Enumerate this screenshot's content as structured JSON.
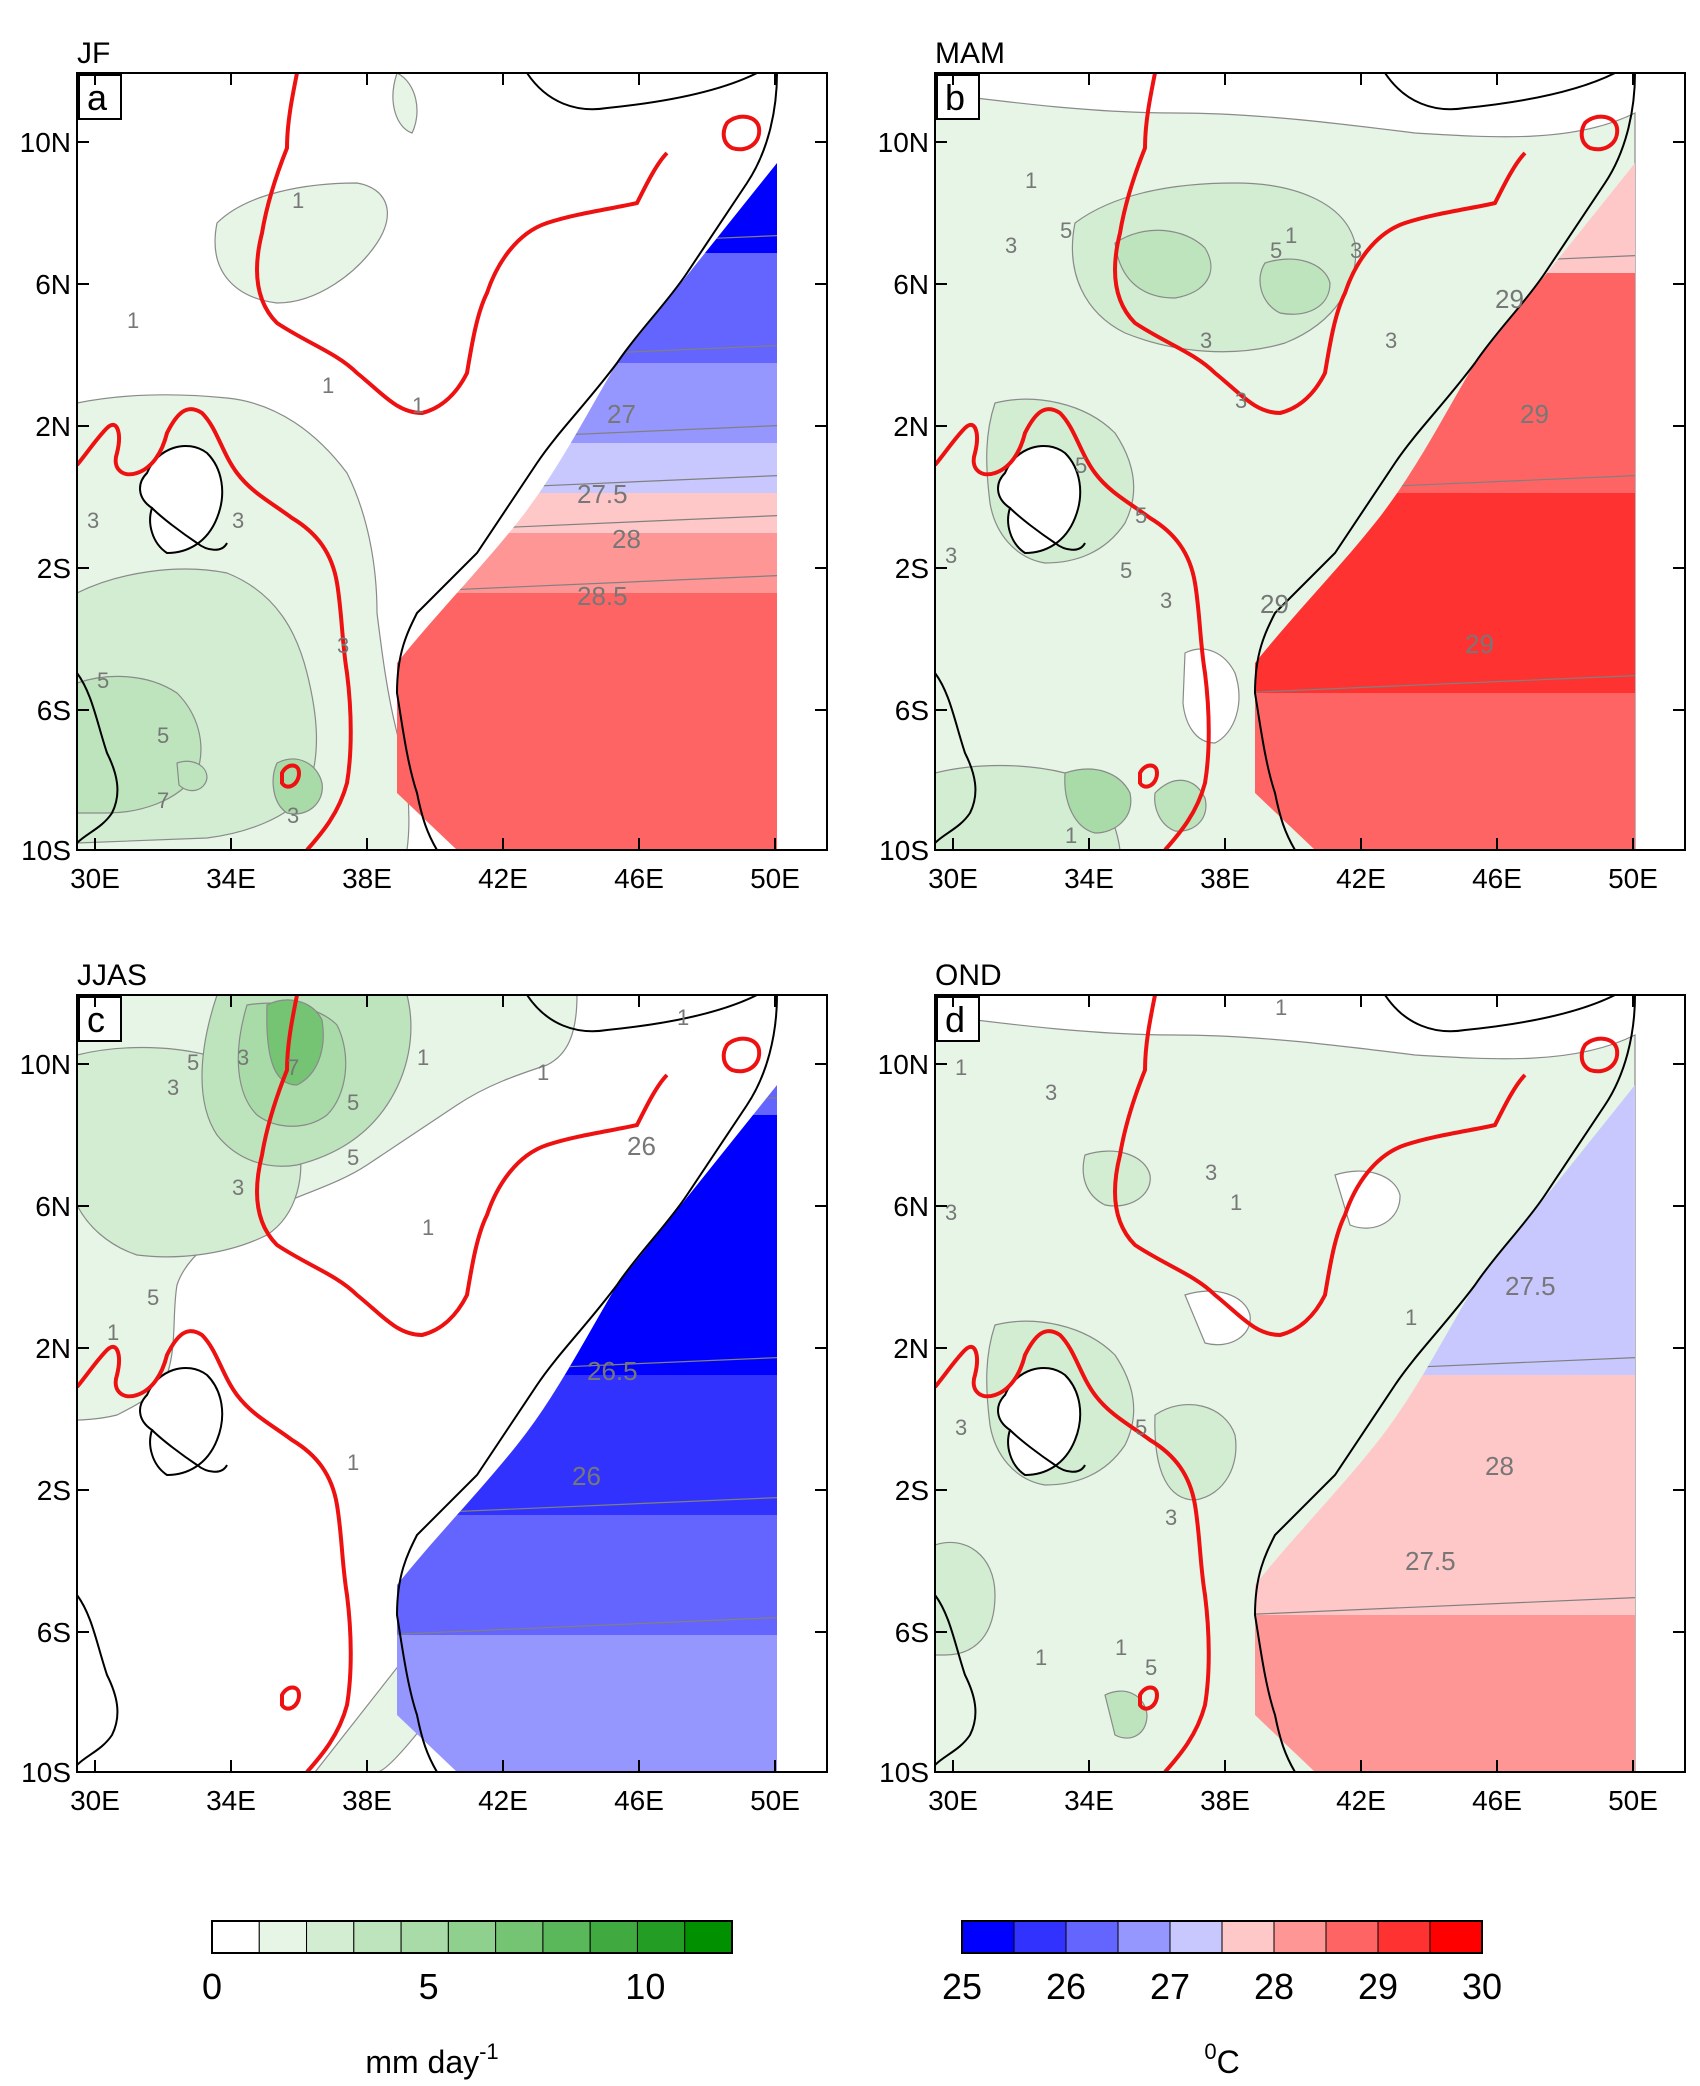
{
  "panels": [
    {
      "id": "a",
      "title": "JF",
      "letter": "a",
      "precip_labels": [
        "1",
        "1",
        "1",
        "1",
        "3",
        "3",
        "3",
        "5",
        "5",
        "7",
        "3"
      ],
      "sst_bands": [
        {
          "color": "#0000ff",
          "v": "25.5"
        },
        {
          "color": "#6464ff",
          "v": "26.5"
        },
        {
          "color": "#9696ff",
          "v": "27"
        },
        {
          "color": "#c8c8ff",
          "v": "27.25"
        },
        {
          "color": "#ffc8c8",
          "v": "27.75"
        },
        {
          "color": "#ff9696",
          "v": "28.25"
        },
        {
          "color": "#ff6464",
          "v": "28.75"
        }
      ],
      "sst_labels": [
        "27",
        "27.5",
        "28",
        "28.5"
      ]
    },
    {
      "id": "b",
      "title": "MAM",
      "letter": "b",
      "precip_labels": [
        "1",
        "1",
        "3",
        "5",
        "5",
        "3",
        "3",
        "3",
        "5",
        "5",
        "3",
        "5",
        "3",
        "1",
        "3"
      ],
      "sst_bands": [
        {
          "color": "#ffc8c8",
          "v": "28"
        },
        {
          "color": "#ff6464",
          "v": "28.75"
        },
        {
          "color": "#ff3232",
          "v": "29.25"
        },
        {
          "color": "#ff6464",
          "v": "28.75"
        }
      ],
      "sst_labels": [
        "29",
        "29",
        "29",
        "29"
      ]
    },
    {
      "id": "c",
      "title": "JJAS",
      "letter": "c",
      "precip_labels": [
        "1",
        "1",
        "3",
        "3",
        "5",
        "5",
        "5",
        "7",
        "5",
        "3",
        "1",
        "1",
        "1",
        "1"
      ],
      "sst_bands": [
        {
          "color": "#6464ff",
          "v": "26.25"
        },
        {
          "color": "#0000ff",
          "v": "25.75"
        },
        {
          "color": "#3232ff",
          "v": "26"
        },
        {
          "color": "#6464ff",
          "v": "26.25"
        },
        {
          "color": "#9696ff",
          "v": "26.75"
        }
      ],
      "sst_labels": [
        "26",
        "26.5",
        "26"
      ]
    },
    {
      "id": "d",
      "title": "OND",
      "letter": "d",
      "precip_labels": [
        "1",
        "1",
        "1",
        "1",
        "3",
        "3",
        "3",
        "3",
        "5",
        "1",
        "3",
        "5",
        "1"
      ],
      "sst_bands": [
        {
          "color": "#c8c8ff",
          "v": "27.25"
        },
        {
          "color": "#ffc8c8",
          "v": "27.75"
        },
        {
          "color": "#ff9696",
          "v": "28.25"
        }
      ],
      "sst_labels": [
        "27.5",
        "28",
        "27.5"
      ]
    }
  ],
  "axes": {
    "x_ticks": [
      "30E",
      "34E",
      "38E",
      "42E",
      "46E",
      "50E"
    ],
    "y_ticks": [
      "10N",
      "6N",
      "2N",
      "2S",
      "6S",
      "10S"
    ],
    "lon_range": [
      30,
      52
    ],
    "lat_range": [
      -10,
      12
    ]
  },
  "colorbars": {
    "precip": {
      "colors": [
        "#ffffff",
        "#e6f5e6",
        "#d2edd2",
        "#bde4bd",
        "#a8dba8",
        "#8fd08f",
        "#74c474",
        "#5ab75a",
        "#40aa40",
        "#249d24",
        "#009000"
      ],
      "tick_labels": [
        "0",
        "5",
        "10"
      ],
      "tick_values": [
        0,
        5,
        10
      ],
      "range": [
        0,
        12
      ],
      "unit_main": "mm day",
      "unit_sup": "-1"
    },
    "sst": {
      "colors": [
        "#0000ff",
        "#3232ff",
        "#6464ff",
        "#9696ff",
        "#c8c8ff",
        "#ffc8c8",
        "#ff9696",
        "#ff6464",
        "#ff3232",
        "#ff0000"
      ],
      "tick_labels": [
        "25",
        "26",
        "27",
        "28",
        "29",
        "30"
      ],
      "unit_sup": "0",
      "unit_main": "C"
    }
  }
}
